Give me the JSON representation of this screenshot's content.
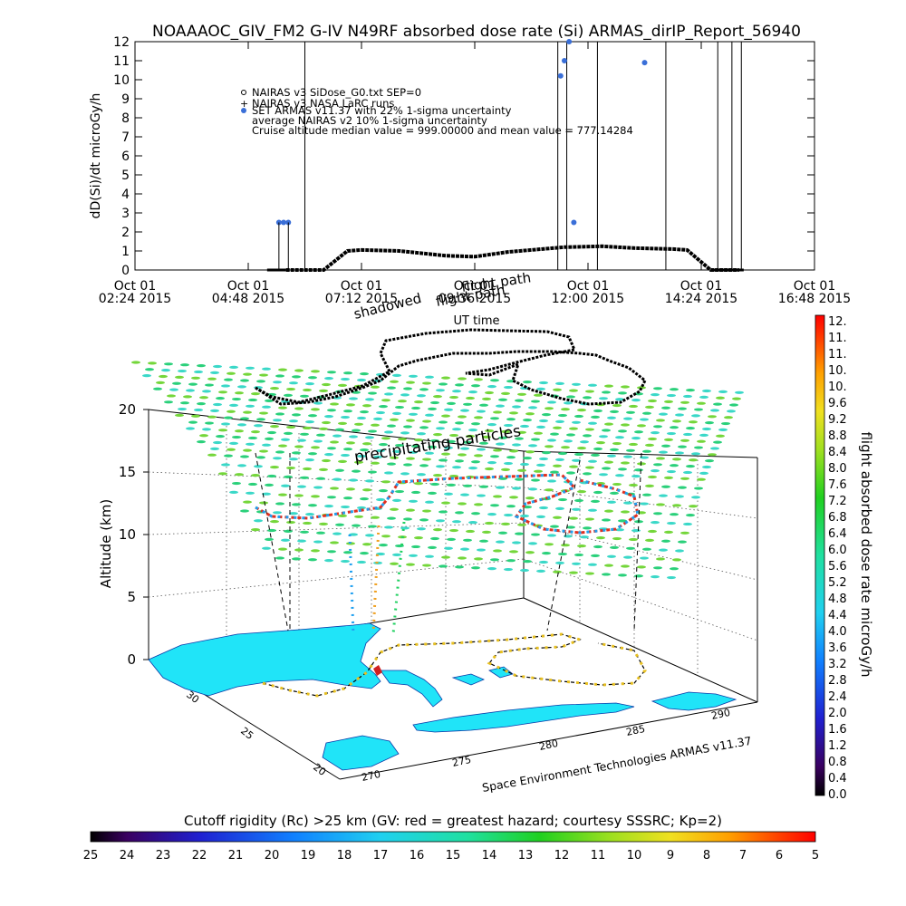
{
  "chart_data": [
    {
      "type": "line",
      "title": "NOAAAOC_GIV_FM2 G-IV    N49RF  absorbed dose rate (Si) ARMAS_dirIP_Report_56940",
      "ylabel": "dD(Si)/dt microGy/h",
      "xlabel": "UT time",
      "ylim": [
        0,
        12
      ],
      "yticks": [
        "0",
        "1",
        "2",
        "3",
        "4",
        "5",
        "6",
        "7",
        "8",
        "9",
        "10",
        "11",
        "12"
      ],
      "xticks": [
        {
          "top": "Oct 01",
          "bottom": "02:24 2015"
        },
        {
          "top": "Oct 01",
          "bottom": "04:48 2015"
        },
        {
          "top": "Oct 01",
          "bottom": "07:12 2015"
        },
        {
          "top": "Oct 01",
          "bottom": "09:36 2015"
        },
        {
          "top": "Oct 01",
          "bottom": "12:00 2015"
        },
        {
          "top": "Oct 01",
          "bottom": "14:24 2015"
        },
        {
          "top": "Oct 01",
          "bottom": "16:48 2015"
        }
      ],
      "xlim_hours": [
        2.4,
        16.8
      ],
      "legend": [
        "NAIRAS v3 SiDose_G0.txt SEP=0",
        "NAIRAS v3 NASA LaRC runs",
        "SET ARMAS v11.37 with 22% 1-sigma uncertainty",
        "average NAIRAS v2 10% 1-sigma uncertainty",
        "Cruise altitude median value = 999.00000 and mean value = 777.14284"
      ],
      "overlay_labels": [
        "flight path",
        "shadowed",
        "flight path"
      ],
      "series": [
        {
          "kind": "nairas-dose-curve",
          "hours": [
            5.6,
            6.4,
            6.9,
            7.2,
            8.0,
            9.0,
            9.6,
            10.3,
            11.5,
            12.3,
            13.0,
            13.8,
            14.1,
            14.6,
            15.2
          ],
          "values": [
            0.0,
            0.0,
            1.0,
            1.05,
            1.0,
            0.75,
            0.7,
            0.95,
            1.2,
            1.25,
            1.15,
            1.1,
            1.05,
            0.0,
            0.0
          ]
        },
        {
          "kind": "armas-measurements",
          "color": "#3a6fd8",
          "points": [
            {
              "h": 5.45,
              "v": 2.5
            },
            {
              "h": 5.55,
              "v": 2.5
            },
            {
              "h": 5.65,
              "v": 2.5
            },
            {
              "h": 11.42,
              "v": 10.2
            },
            {
              "h": 11.5,
              "v": 11.0
            },
            {
              "h": 11.6,
              "v": 12.0
            },
            {
              "h": 11.7,
              "v": 2.5
            },
            {
              "h": 13.2,
              "v": 10.9
            }
          ]
        }
      ],
      "vertical_lines_hours": [
        6.0,
        11.36,
        11.55,
        12.2,
        13.65,
        14.75,
        15.05,
        15.25
      ]
    },
    {
      "type": "scatter",
      "subtype": "3d-flight-track",
      "zlabel": "Altitude (km)",
      "zticks": [
        "0",
        "5",
        "10",
        "15",
        "20"
      ],
      "lat_ticks": [
        "30",
        "25",
        "20"
      ],
      "lon_ticks": [
        "270",
        "275",
        "280",
        "285",
        "290"
      ],
      "annotation": "precipitating particles",
      "credit": "Space Environment Technologies ARMAS v11.37",
      "colorbar": {
        "label": "flight absorbed dose rate microGy/h",
        "ticks": [
          "12.",
          "11.",
          "11.",
          "10.",
          "10.",
          "9.6",
          "9.2",
          "8.8",
          "8.4",
          "8.0",
          "7.6",
          "7.2",
          "6.8",
          "6.4",
          "6.0",
          "5.6",
          "5.2",
          "4.8",
          "4.4",
          "4.0",
          "3.6",
          "3.2",
          "2.8",
          "2.4",
          "2.0",
          "1.6",
          "1.2",
          "0.8",
          "0.4",
          "0.0"
        ]
      },
      "cutoff_colorbar": {
        "label": "Cutoff rigidity (Rc) >25 km (GV: red = greatest hazard; courtesy SSSRC; Kp=2)",
        "ticks": [
          "25",
          "24",
          "23",
          "22",
          "21",
          "20",
          "19",
          "18",
          "17",
          "16",
          "15",
          "14",
          "13",
          "12",
          "11",
          "10",
          "9",
          "8",
          "7",
          "6",
          "5"
        ]
      }
    }
  ],
  "colors": {
    "land": "#20e4f8",
    "grid_dots": [
      "#2ad07a",
      "#3ad8c8",
      "#74d63a"
    ],
    "track": "#000000",
    "armas": "#3a6fd8"
  }
}
